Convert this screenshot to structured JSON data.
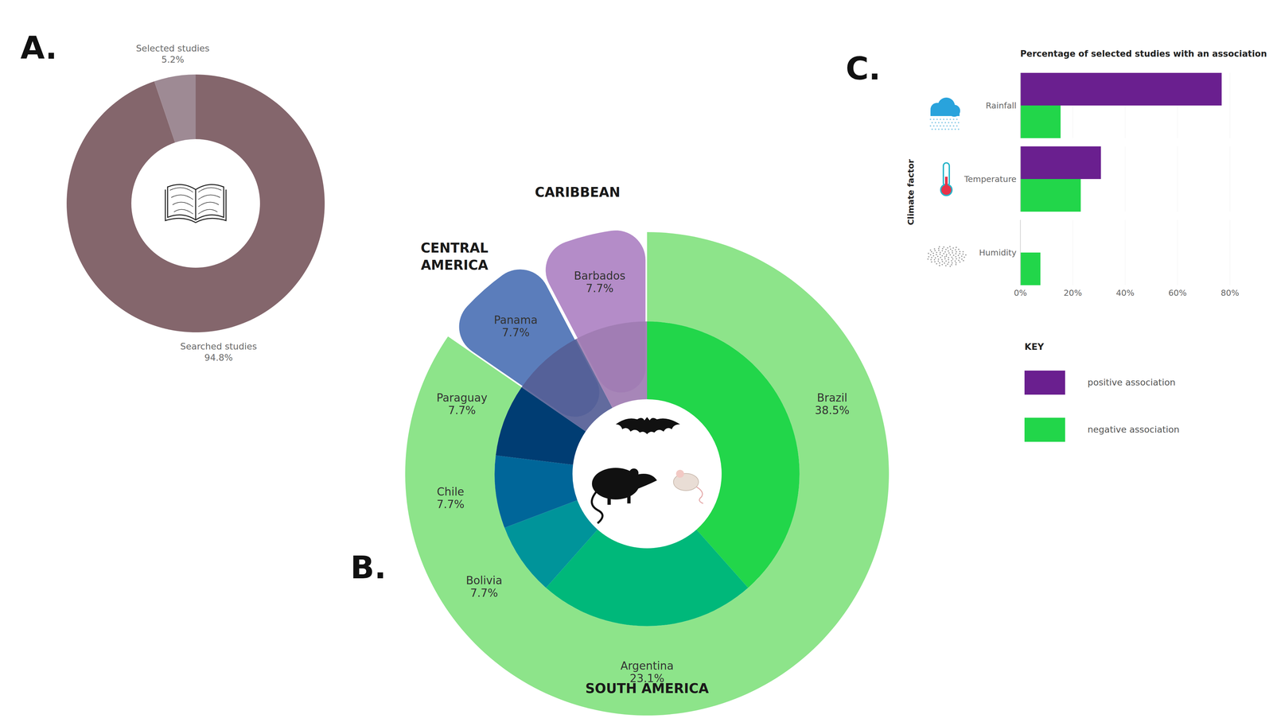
{
  "chart_data": [
    {
      "type": "pie",
      "panel_label": "A.",
      "categories": [
        "Searched studies",
        "Selected studies"
      ],
      "values": [
        94.8,
        5.2
      ],
      "value_labels": [
        "94.8%",
        "5.2%"
      ],
      "colors": [
        "#84666c",
        "#9e8a94"
      ],
      "data_labels": true
    },
    {
      "type": "sunburst",
      "panel_label": "B.",
      "categories": [
        "Brazil",
        "Argentina",
        "Bolivia",
        "Chile",
        "Paraguay",
        "Panama",
        "Barbados"
      ],
      "values": [
        38.5,
        23.1,
        7.7,
        7.7,
        7.7,
        7.7,
        7.7
      ],
      "value_labels": [
        "38.5%",
        "23.1%",
        "7.7%",
        "7.7%",
        "7.7%",
        "7.7%",
        "7.7%"
      ],
      "colors": [
        "#22d64a",
        "#00b87a",
        "#00949a",
        "#006699",
        "#003d73",
        "#555e96",
        "#a07cb2"
      ],
      "groups": [
        "SOUTH AMERICA",
        "SOUTH AMERICA",
        "SOUTH AMERICA",
        "SOUTH AMERICA",
        "SOUTH AMERICA",
        "CENTRAL AMERICA",
        "CARIBBEAN"
      ],
      "group_names": [
        "SOUTH AMERICA",
        "CENTRAL AMERICA",
        "CARIBBEAN"
      ],
      "group_colors": [
        "#8de48a",
        "#5b7dbb",
        "#b48cc8"
      ],
      "data_labels": true
    },
    {
      "type": "bar",
      "panel_label": "C.",
      "orientation": "horizontal",
      "title": "Percentage of selected studies with an association",
      "y_label": "Climate factor",
      "categories": [
        "Rainfall",
        "Temperature",
        "Humidity"
      ],
      "series": [
        {
          "name": "positive association",
          "color": "#6a1f8f",
          "values": [
            76.9,
            30.8,
            null
          ]
        },
        {
          "name": "negative association",
          "color": "#22d64a",
          "values": [
            15.4,
            23.1,
            7.7
          ]
        }
      ],
      "xlim": [
        0,
        80
      ],
      "xticks": [
        {
          "value": 0,
          "label": "0%"
        },
        {
          "value": 20,
          "label": "20%"
        },
        {
          "value": 40,
          "label": "40%"
        },
        {
          "value": 60,
          "label": "60%"
        },
        {
          "value": 80,
          "label": "80%"
        }
      ],
      "grid": true,
      "legend": "right",
      "legend_title": "KEY"
    }
  ]
}
